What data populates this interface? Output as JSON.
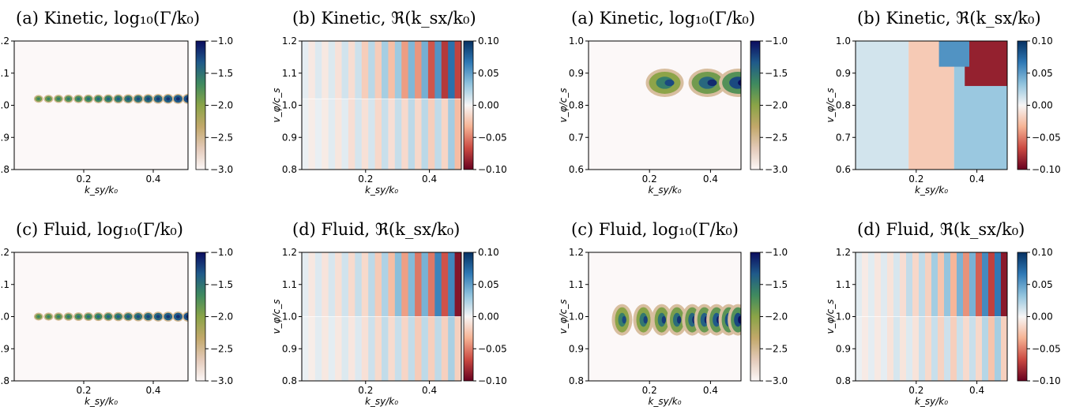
{
  "chart_data": [
    {
      "type": "heatmap",
      "title": "(a) Kinetic, log₁₀(Γ/k₀)",
      "xlabel": "k_sy/k₀",
      "ylabel": "v_φ/c_s",
      "xlim": [
        0,
        0.5
      ],
      "ylim": [
        0.8,
        1.2
      ],
      "xticks": [
        "0.2",
        "0.4"
      ],
      "yticks": [
        "0.8",
        "0.9",
        "1.0",
        "1.1",
        "1.2"
      ],
      "colorbar": {
        "range": [
          -3.0,
          -1.0
        ],
        "ticks": [
          "−1.0",
          "−1.5",
          "−2.0",
          "−2.5",
          "−3.0"
        ],
        "cmap": "gist_earth_r"
      },
      "features": [
        {
          "kind": "unstable_band",
          "v": 1.02,
          "k_start": 0.07,
          "k_end": 0.5,
          "peak_log_growth": -1.6
        }
      ]
    },
    {
      "type": "heatmap",
      "title": "(b) Kinetic, ℜ(k_sx/k₀)",
      "xlabel": "k_sy/k₀",
      "ylabel": "v_φ/c_s",
      "xlim": [
        0,
        0.5
      ],
      "ylim": [
        0.8,
        1.2
      ],
      "xticks": [
        "0.2",
        "0.4"
      ],
      "yticks": [
        "0.8",
        "0.9",
        "1.0",
        "1.1",
        "1.2"
      ],
      "colorbar": {
        "range": [
          -0.1,
          0.1
        ],
        "ticks": [
          "0.10",
          "0.05",
          "0.00",
          "−0.05",
          "−0.10"
        ],
        "cmap": "RdBu"
      },
      "features": [
        {
          "kind": "stripes",
          "boundary_v": 1.02
        }
      ]
    },
    {
      "type": "heatmap",
      "title": "(a) Kinetic, log₁₀(Γ/k₀)",
      "xlabel": "k_sy/k₀",
      "ylabel": "v_φ/c_s",
      "xlim": [
        0,
        0.5
      ],
      "ylim": [
        0.6,
        1.0
      ],
      "xticks": [
        "0.2",
        "0.4"
      ],
      "yticks": [
        "0.6",
        "0.7",
        "0.8",
        "0.9",
        "1.0"
      ],
      "colorbar": {
        "range": [
          -3.0,
          -1.0
        ],
        "ticks": [
          "−1.0",
          "−1.5",
          "−2.0",
          "−2.5",
          "−3.0"
        ],
        "cmap": "gist_earth_r"
      },
      "features": [
        {
          "kind": "blobs",
          "v": 0.87,
          "k_centers": [
            0.25,
            0.39,
            0.49
          ],
          "peak_log_growth": -1.1
        }
      ]
    },
    {
      "type": "heatmap",
      "title": "(b) Kinetic, ℜ(k_sx/k₀)",
      "xlabel": "k_sy/k₀",
      "ylabel": "v_φ/c_s",
      "xlim": [
        0,
        0.5
      ],
      "ylim": [
        0.6,
        1.0
      ],
      "xticks": [
        "0.2",
        "0.4"
      ],
      "yticks": [
        "0.6",
        "0.7",
        "0.8",
        "0.9",
        "1.0"
      ],
      "colorbar": {
        "range": [
          -0.1,
          0.1
        ],
        "ticks": [
          "0.10",
          "0.05",
          "0.00",
          "−0.05",
          "−0.10"
        ],
        "cmap": "RdBu"
      },
      "features": [
        {
          "kind": "smooth_regions"
        }
      ]
    },
    {
      "type": "heatmap",
      "title": "(c) Fluid, log₁₀(Γ/k₀)",
      "xlabel": "k_sy/k₀",
      "ylabel": "v_φ/c_s",
      "xlim": [
        0,
        0.5
      ],
      "ylim": [
        0.8,
        1.2
      ],
      "xticks": [
        "0.2",
        "0.4"
      ],
      "yticks": [
        "0.8",
        "0.9",
        "1.0",
        "1.1",
        "1.2"
      ],
      "colorbar": {
        "range": [
          -3.0,
          -1.0
        ],
        "ticks": [
          "−1.0",
          "−1.5",
          "−2.0",
          "−2.5",
          "−3.0"
        ],
        "cmap": "gist_earth_r"
      },
      "features": [
        {
          "kind": "unstable_band",
          "v": 1.0,
          "k_start": 0.07,
          "k_end": 0.5,
          "peak_log_growth": -1.5
        }
      ]
    },
    {
      "type": "heatmap",
      "title": "(d) Fluid, ℜ(k_sx/k₀)",
      "xlabel": "k_sy/k₀",
      "ylabel": "v_φ/c_s",
      "xlim": [
        0,
        0.5
      ],
      "ylim": [
        0.8,
        1.2
      ],
      "xticks": [
        "0.2",
        "0.4"
      ],
      "yticks": [
        "0.8",
        "0.9",
        "1.0",
        "1.1",
        "1.2"
      ],
      "colorbar": {
        "range": [
          -0.1,
          0.1
        ],
        "ticks": [
          "0.10",
          "0.05",
          "0.00",
          "−0.05",
          "−0.10"
        ],
        "cmap": "RdBu"
      },
      "features": [
        {
          "kind": "stripes",
          "boundary_v": 1.0
        }
      ]
    },
    {
      "type": "heatmap",
      "title": "(c) Fluid, log₁₀(Γ/k₀)",
      "xlabel": "k_sy/k₀",
      "ylabel": "v_φ/c_s",
      "xlim": [
        0,
        0.5
      ],
      "ylim": [
        0.8,
        1.2
      ],
      "xticks": [
        "0.2",
        "0.4"
      ],
      "yticks": [
        "0.8",
        "0.9",
        "1.0",
        "1.1",
        "1.2"
      ],
      "colorbar": {
        "range": [
          -3.0,
          -1.0
        ],
        "ticks": [
          "−1.0",
          "−1.5",
          "−2.0",
          "−2.5",
          "−3.0"
        ],
        "cmap": "gist_earth_r"
      },
      "features": [
        {
          "kind": "blobs",
          "v": 0.99,
          "k_centers": [
            0.11,
            0.18,
            0.24,
            0.29,
            0.34,
            0.38,
            0.42,
            0.46,
            0.49
          ],
          "peak_log_growth": -1.2
        }
      ]
    },
    {
      "type": "heatmap",
      "title": "(d) Fluid, ℜ(k_sx/k₀)",
      "xlabel": "k_sy/k₀",
      "ylabel": "v_φ/c_s",
      "xlim": [
        0,
        0.5
      ],
      "ylim": [
        0.8,
        1.2
      ],
      "xticks": [
        "0.2",
        "0.4"
      ],
      "yticks": [
        "0.8",
        "0.9",
        "1.0",
        "1.1",
        "1.2"
      ],
      "colorbar": {
        "range": [
          -0.1,
          0.1
        ],
        "ticks": [
          "0.10",
          "0.05",
          "0.00",
          "−0.05",
          "−0.10"
        ],
        "cmap": "RdBu"
      },
      "features": [
        {
          "kind": "stripes",
          "boundary_v": 1.0
        }
      ]
    }
  ]
}
